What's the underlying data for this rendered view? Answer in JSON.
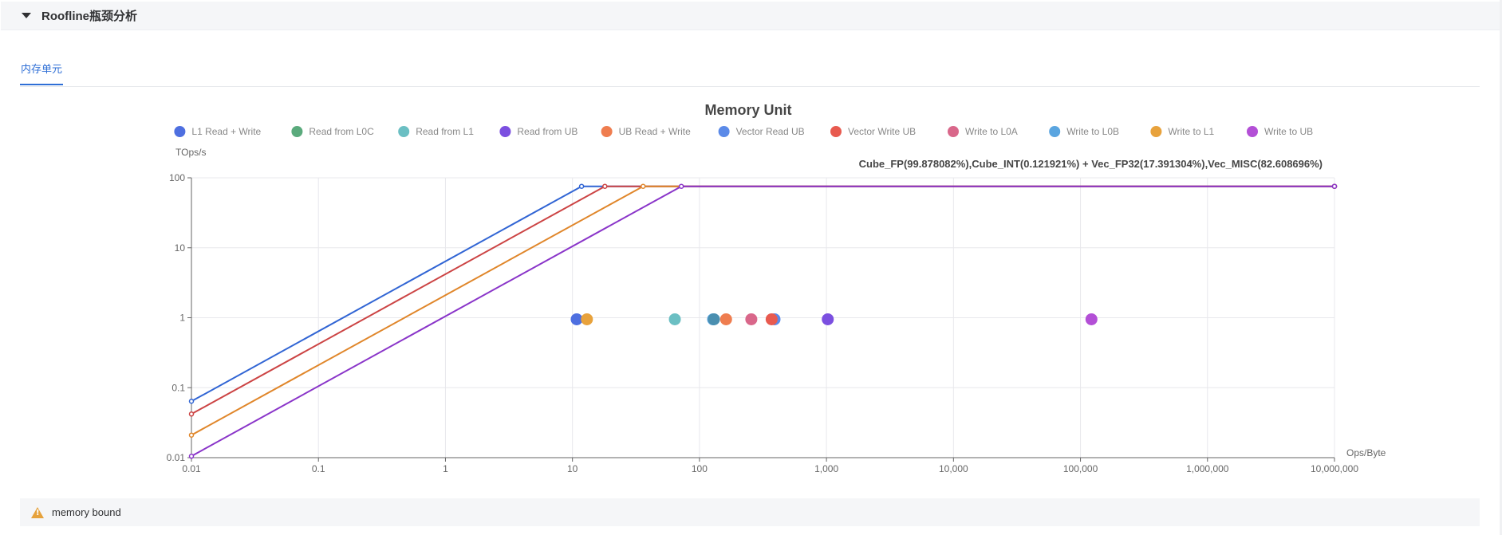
{
  "section": {
    "title": "Roofline瓶颈分析"
  },
  "tabs": [
    {
      "label": "内存单元"
    }
  ],
  "footer": {
    "text": "memory bound"
  },
  "chart_data": {
    "type": "scatter",
    "title": "Memory Unit",
    "ylabel": "TOps/s",
    "xlabel": "Ops/Byte",
    "x_scale": "log",
    "y_scale": "log",
    "xlim": [
      0.01,
      10000000
    ],
    "ylim": [
      0.01,
      100
    ],
    "grid": true,
    "legend_position": "top",
    "x_ticks": [
      0.01,
      0.1,
      1,
      10,
      100,
      1000,
      10000,
      100000,
      1000000,
      10000000
    ],
    "x_tick_labels": [
      "0.01",
      "0.1",
      "1",
      "10",
      "100",
      "1,000",
      "10,000",
      "100,000",
      "1,000,000",
      "10,000,000"
    ],
    "y_ticks": [
      0.01,
      0.1,
      1,
      10,
      100
    ],
    "y_tick_labels": [
      "0.01",
      "0.1",
      "1",
      "10",
      "100"
    ],
    "annotation": "Cube_FP(99.878082%),Cube_INT(0.121921%) + Vec_FP32(17.391304%),Vec_MISC(82.608696%)",
    "legend": [
      {
        "name": "L1 Read + Write",
        "color": "#4e6fe0"
      },
      {
        "name": "Read from L0C",
        "color": "#5aaa7c"
      },
      {
        "name": "Read from L1",
        "color": "#6bbfc3"
      },
      {
        "name": "Read from UB",
        "color": "#7b4fe0"
      },
      {
        "name": "UB Read + Write",
        "color": "#ef7d4f"
      },
      {
        "name": "Vector Read UB",
        "color": "#5b8ae8"
      },
      {
        "name": "Vector Write UB",
        "color": "#e85a4f"
      },
      {
        "name": "Write to L0A",
        "color": "#d9678a"
      },
      {
        "name": "Write to L0B",
        "color": "#5aa5e0"
      },
      {
        "name": "Write to L1",
        "color": "#e8a23c"
      },
      {
        "name": "Write to UB",
        "color": "#b34fd6"
      }
    ],
    "roofline_series": [
      {
        "color": "#3165d4",
        "points": [
          [
            0.01,
            0.064
          ],
          [
            11.8,
            75.5
          ],
          [
            10000000,
            75.5
          ]
        ]
      },
      {
        "color": "#cc4444",
        "points": [
          [
            0.01,
            0.042
          ],
          [
            18,
            75.5
          ],
          [
            10000000,
            75.5
          ]
        ]
      },
      {
        "color": "#e0862a",
        "points": [
          [
            0.01,
            0.021
          ],
          [
            36,
            75.5
          ],
          [
            10000000,
            75.5
          ]
        ]
      },
      {
        "color": "#8a35c9",
        "points": [
          [
            0.01,
            0.0105
          ],
          [
            72,
            75.5
          ],
          [
            10000000,
            75.5
          ]
        ]
      }
    ],
    "points": [
      {
        "x": 10.8,
        "y": 0.95,
        "color": "#4e6fe0"
      },
      {
        "x": 13,
        "y": 0.95,
        "color": "#e8a23c"
      },
      {
        "x": 64,
        "y": 0.95,
        "color": "#6bbfc3"
      },
      {
        "x": 128,
        "y": 0.95,
        "color": "#5aa5e0"
      },
      {
        "x": 130,
        "y": 0.95,
        "color": "#4a8fb0"
      },
      {
        "x": 162,
        "y": 0.95,
        "color": "#ef7d4f"
      },
      {
        "x": 256,
        "y": 0.95,
        "color": "#d9678a"
      },
      {
        "x": 390,
        "y": 0.95,
        "color": "#5b8ae8"
      },
      {
        "x": 370,
        "y": 0.95,
        "color": "#e85a4f"
      },
      {
        "x": 1024,
        "y": 0.95,
        "color": "#7b4fe0"
      },
      {
        "x": 122000,
        "y": 0.95,
        "color": "#b34fd6"
      }
    ]
  }
}
